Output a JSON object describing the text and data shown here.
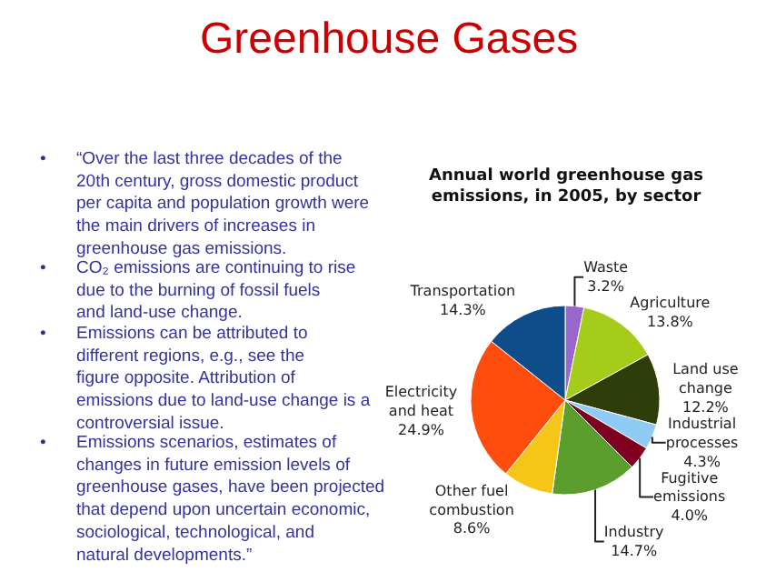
{
  "chart_data": {
    "type": "pie",
    "title": "Greenhouse Gases",
    "subtitle": "Annual world greenhouse gas emissions, in 2005, by sector",
    "categories": [
      "Waste",
      "Agriculture",
      "Land use change",
      "Industrial processes",
      "Fugitive emissions",
      "Industry",
      "Other fuel combustion",
      "Electricity and heat",
      "Transportation"
    ],
    "values": [
      3.2,
      13.8,
      12.2,
      4.3,
      4.0,
      14.7,
      8.6,
      24.9,
      14.3
    ],
    "colors": [
      "#9966cc",
      "#a6cc1a",
      "#2e3d0a",
      "#8fcbf5",
      "#800020",
      "#5c9e2e",
      "#f5c518",
      "#ff4d0d",
      "#0f4c8a"
    ],
    "value_labels": [
      "3.2%",
      "13.8%",
      "12.2%",
      "4.3%",
      "4.0%",
      "14.7%",
      "8.6%",
      "24.9%",
      "14.3%"
    ],
    "annotations": [
      "• “Over the last three decades of the 20th century, gross domestic product per capita and population growth were the main drivers of increases in greenhouse gas emissions.",
      "• CO₂ emissions are continuing to rise due to the burning of fossil fuels and land-use change.",
      "• Emissions can be attributed to different regions, e.g., see the figure opposite. Attribution of emissions due to land-use change is a controversial issue.",
      "• Emissions scenarios, estimates of changes in future emission levels of greenhouse gases, have been projected that depend upon uncertain economic, sociological, technological, and natural developments.”"
    ],
    "legend": false
  }
}
